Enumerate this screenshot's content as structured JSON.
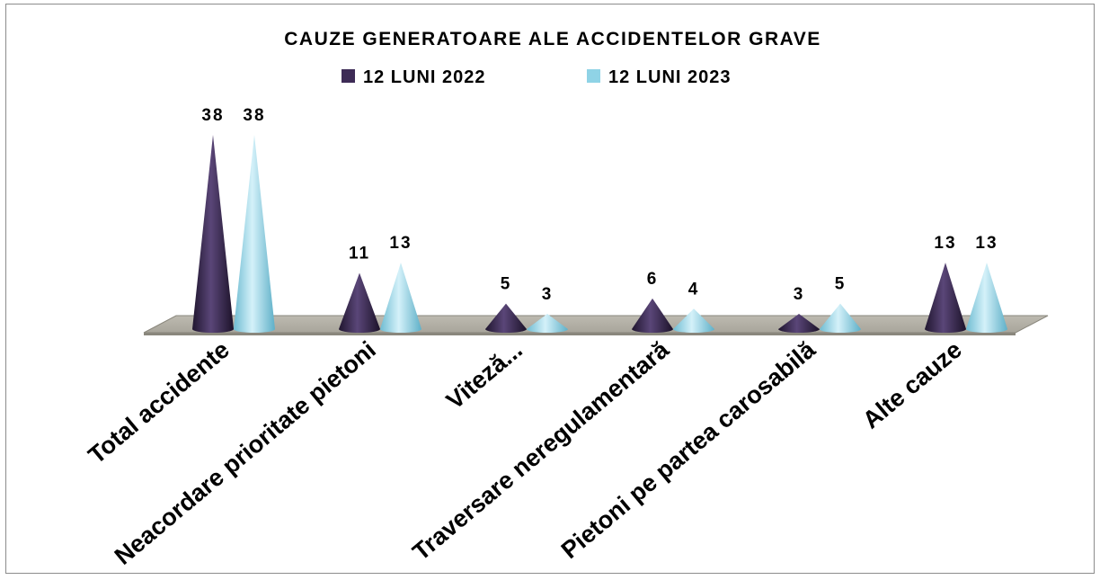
{
  "chart_data": {
    "type": "bar",
    "title": "CAUZE GENERATOARE ALE  ACCIDENTELOR GRAVE",
    "categories": [
      "Total accidente",
      "Neacordare prioritate pietoni",
      "Viteză...",
      "Traversare neregulamentară",
      "Pietoni pe partea carosabilă",
      "Alte cauze"
    ],
    "series": [
      {
        "name": "12 LUNI 2022",
        "color": "#3d2b56",
        "values": [
          38,
          11,
          5,
          6,
          3,
          13
        ]
      },
      {
        "name": "12 LUNI 2023",
        "color": "#8fd3e6",
        "values": [
          38,
          13,
          3,
          4,
          5,
          13
        ]
      }
    ],
    "ylim": [
      0,
      38
    ],
    "grid": false,
    "legend": "top",
    "bar_shape": "cone"
  }
}
